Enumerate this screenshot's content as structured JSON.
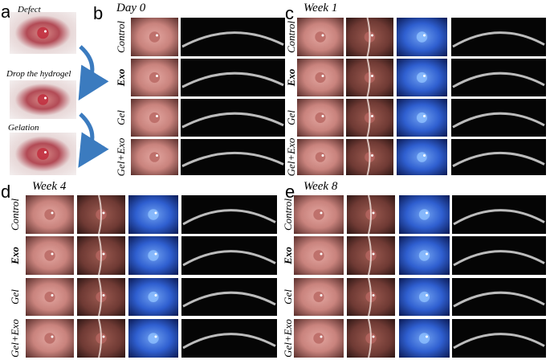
{
  "panels": [
    {
      "letter": "a",
      "captions": [
        "Defect",
        "Drop the hydrogel",
        "Gelation"
      ]
    },
    {
      "letter": "b",
      "title": "Day 0",
      "rows": [
        "Control",
        "Exo",
        "Gel",
        "Gel+Exo"
      ]
    },
    {
      "letter": "c",
      "title": "Week 1",
      "rows": [
        "Control",
        "Exo",
        "Gel",
        "Gel+Exo"
      ]
    },
    {
      "letter": "d",
      "title": "Week 4",
      "rows": [
        "Control",
        "Exo",
        "Gel",
        "Gel+Exo"
      ]
    },
    {
      "letter": "e",
      "title": "Week 8",
      "rows": [
        "Control",
        "Exo",
        "Gel",
        "Gel+Exo"
      ]
    }
  ]
}
